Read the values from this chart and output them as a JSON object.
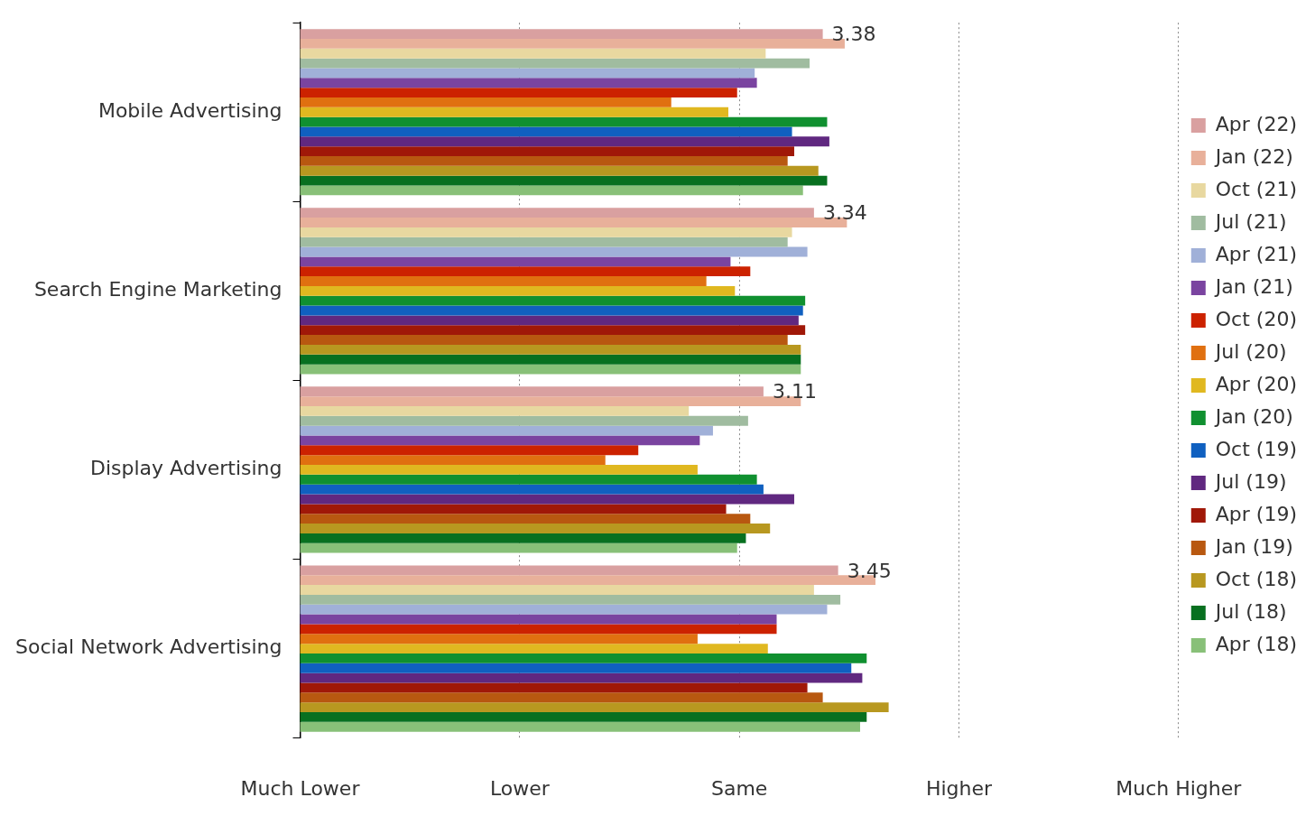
{
  "chart_data": {
    "type": "bar",
    "orientation": "horizontal",
    "categories": [
      "Mobile Advertising",
      "Search Engine Marketing",
      "Display Advertising",
      "Social Network Advertising"
    ],
    "xlim": [
      1,
      5
    ],
    "xticks": [
      {
        "value": 1,
        "label": null
      },
      {
        "value": 2,
        "label": null
      },
      {
        "value": 3,
        "label": null
      },
      {
        "value": 4,
        "label": null
      },
      {
        "value": 5,
        "label": null
      }
    ],
    "annotations": [
      "Much Lower",
      "Lower",
      "Same",
      "Higher",
      "Much Higher"
    ],
    "grid": "x",
    "line_style": "dotted",
    "legend": "right",
    "series": [
      {
        "name": "Apr (22)",
        "color": "#d9a0a0",
        "values": [
          3.38,
          3.34,
          3.11,
          3.45
        ],
        "value_labels": [
          "3.38",
          "3.34",
          "3.11",
          "3.45"
        ]
      },
      {
        "name": "Jan (22)",
        "color": "#e8b09a",
        "values": [
          3.48,
          3.49,
          3.28,
          3.62
        ]
      },
      {
        "name": "Oct (21)",
        "color": "#e8d8a0",
        "values": [
          3.12,
          3.24,
          2.77,
          3.34
        ]
      },
      {
        "name": "Jul (21)",
        "color": "#a0bca0",
        "values": [
          3.32,
          3.22,
          3.04,
          3.46
        ]
      },
      {
        "name": "Apr (21)",
        "color": "#a0b0d8",
        "values": [
          3.07,
          3.31,
          2.88,
          3.4
        ]
      },
      {
        "name": "Jan (21)",
        "color": "#7a44a0",
        "values": [
          3.08,
          2.96,
          2.82,
          3.17
        ]
      },
      {
        "name": "Oct (20)",
        "color": "#cc2200",
        "values": [
          2.99,
          3.05,
          2.54,
          3.17
        ]
      },
      {
        "name": "Jul (20)",
        "color": "#e07010",
        "values": [
          2.69,
          2.85,
          2.39,
          2.81
        ]
      },
      {
        "name": "Apr (20)",
        "color": "#e0b820",
        "values": [
          2.95,
          2.98,
          2.81,
          3.13
        ]
      },
      {
        "name": "Jan (20)",
        "color": "#109030",
        "values": [
          3.4,
          3.3,
          3.08,
          3.58
        ]
      },
      {
        "name": "Oct (19)",
        "color": "#1060c0",
        "values": [
          3.24,
          3.29,
          3.11,
          3.51
        ]
      },
      {
        "name": "Jul (19)",
        "color": "#602880",
        "values": [
          3.41,
          3.27,
          3.25,
          3.56
        ]
      },
      {
        "name": "Apr (19)",
        "color": "#a01808",
        "values": [
          3.25,
          3.3,
          2.94,
          3.31
        ]
      },
      {
        "name": "Jan (19)",
        "color": "#b85810",
        "values": [
          3.22,
          3.22,
          3.05,
          3.38
        ]
      },
      {
        "name": "Oct (18)",
        "color": "#b89820",
        "values": [
          3.36,
          3.28,
          3.14,
          3.68
        ]
      },
      {
        "name": "Jul (18)",
        "color": "#087020",
        "values": [
          3.4,
          3.28,
          3.03,
          3.58
        ]
      },
      {
        "name": "Apr (18)",
        "color": "#88c078",
        "values": [
          3.29,
          3.28,
          2.99,
          3.55
        ]
      }
    ]
  }
}
